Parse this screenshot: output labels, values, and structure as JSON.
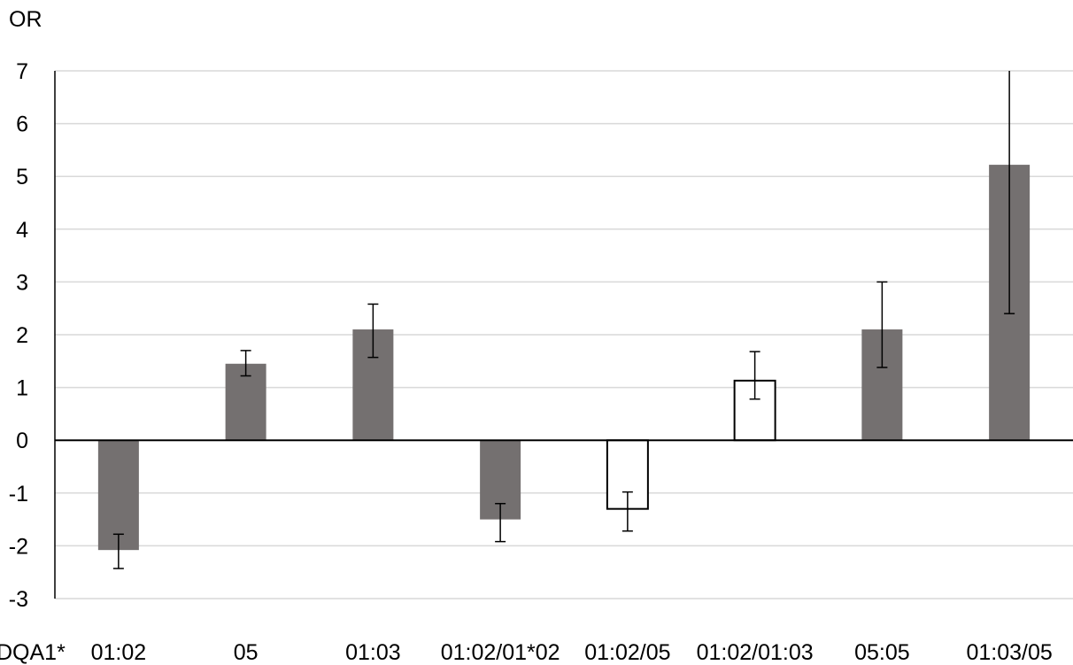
{
  "chart_data": {
    "type": "bar",
    "ylabel": "OR",
    "xlabel": "DQA1*",
    "title": "",
    "ylim": [
      -3,
      7
    ],
    "yticks": [
      7,
      6,
      5,
      4,
      3,
      2,
      1,
      0,
      -1,
      -2,
      -3
    ],
    "grid": true,
    "categories": [
      "01:02",
      "05",
      "01:03",
      "01:02/01*02",
      "01:02/05",
      "01:02/01:03",
      "05:05",
      "01:03/05"
    ],
    "values": [
      -2.08,
      1.45,
      2.1,
      -1.5,
      -1.3,
      1.13,
      2.1,
      5.22
    ],
    "error_low": [
      -2.43,
      1.22,
      1.57,
      -1.92,
      -1.72,
      0.78,
      1.38,
      2.4
    ],
    "error_high": [
      -1.78,
      1.7,
      2.58,
      -1.2,
      -0.98,
      1.68,
      3.0,
      7.0
    ],
    "bar_style": [
      "filled",
      "filled",
      "filled",
      "filled",
      "outline",
      "outline",
      "filled",
      "filled"
    ],
    "colors": {
      "filled": "#747070",
      "outline": "#ffffff",
      "outline_stroke": "#000000",
      "grid": "#d9d9d9",
      "axis": "#000000"
    }
  }
}
